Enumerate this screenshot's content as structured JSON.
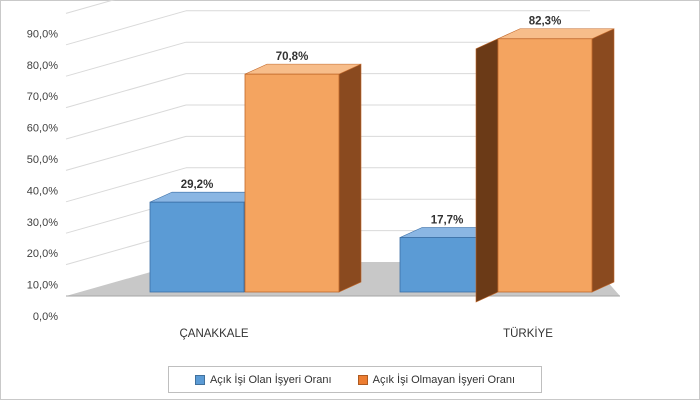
{
  "chart_data": {
    "type": "bar",
    "categories": [
      "ÇANAKKALE",
      "TÜRKİYE"
    ],
    "series": [
      {
        "name": "Açık İşi Olan İşyeri Oranı",
        "values": [
          29.2,
          17.7
        ],
        "color": "#5b9bd5",
        "labels": [
          "29,2%",
          "17,7%"
        ]
      },
      {
        "name": "Açık İşi Olmayan İşyeri Oranı",
        "values": [
          70.8,
          82.3
        ],
        "color": "#f4a460",
        "labels": [
          "70,8%",
          "82,3%"
        ]
      }
    ],
    "ylim": [
      0,
      90
    ],
    "yticks": [
      "0,0%",
      "10,0%",
      "20,0%",
      "30,0%",
      "40,0%",
      "50,0%",
      "60,0%",
      "70,0%",
      "80,0%",
      "90,0%"
    ],
    "grid": true,
    "legend": "bottom",
    "title": "",
    "xlabel": "",
    "ylabel": ""
  }
}
